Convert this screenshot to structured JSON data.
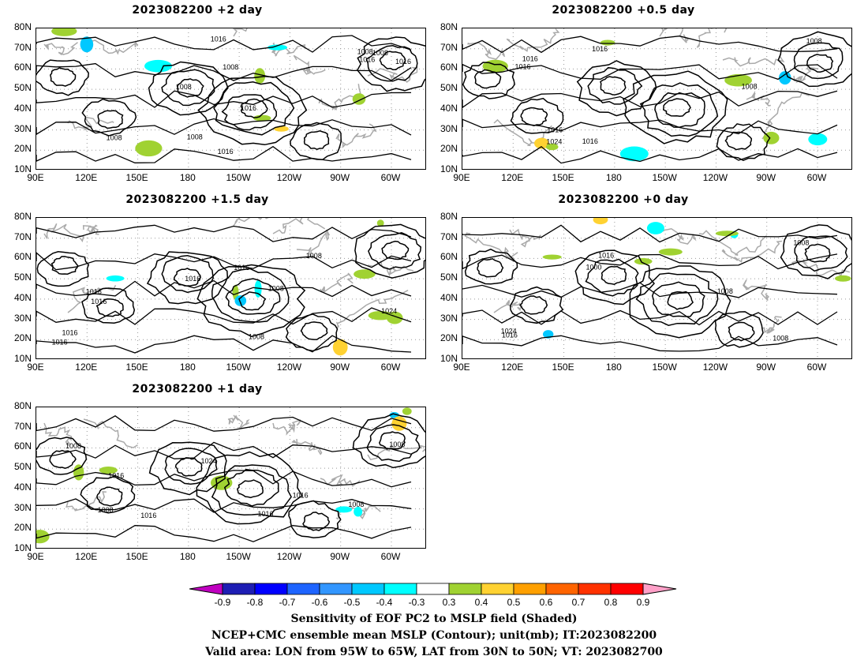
{
  "panels": [
    {
      "id": "p2",
      "title": "2023082200 +2 day",
      "labels": [
        "1016",
        "1016",
        "1008",
        "1008",
        "1016",
        "1016",
        "1008",
        "1016",
        "1008",
        "1008",
        "1008"
      ]
    },
    {
      "id": "p05",
      "title": "2023082200 +0.5 day",
      "labels": [
        "1016",
        "1008",
        "1016",
        "1016",
        "1024",
        "1016",
        "1008",
        "1016"
      ]
    },
    {
      "id": "p15",
      "title": "2023082200 +1.5 day",
      "labels": [
        "1016",
        "1016",
        "1008",
        "1016",
        "1024",
        "1016",
        "1016",
        "1008",
        "1016",
        "1008"
      ]
    },
    {
      "id": "p0",
      "title": "2023082200 +0 day",
      "labels": [
        "1008",
        "1000",
        "1016",
        "1016",
        "1008",
        "1008",
        "1024"
      ]
    },
    {
      "id": "p1",
      "title": "2023082200 +1 day",
      "labels": [
        "1016",
        "1016",
        "1008",
        "1008",
        "1024",
        "1016",
        "1008",
        "1016",
        "1008"
      ]
    }
  ],
  "lat_labels": [
    "80N",
    "70N",
    "60N",
    "50N",
    "40N",
    "30N",
    "20N",
    "10N"
  ],
  "lon_labels": [
    "90E",
    "120E",
    "150E",
    "180",
    "150W",
    "120W",
    "90W",
    "60W"
  ],
  "colorbar": {
    "ticks": [
      "-0.9",
      "-0.8",
      "-0.7",
      "-0.6",
      "-0.5",
      "-0.4",
      "-0.3",
      "0.3",
      "0.4",
      "0.5",
      "0.6",
      "0.7",
      "0.8",
      "0.9"
    ],
    "colors": [
      "#c000c0",
      "#1e1eb4",
      "#0000ff",
      "#1e64ff",
      "#3296ff",
      "#00c8ff",
      "#00ffff",
      "#ffffff",
      "#a0d232",
      "#ffd232",
      "#ffa000",
      "#ff6400",
      "#ff3200",
      "#ff0000",
      "#ffa0c8"
    ]
  },
  "caption": {
    "line1": "Sensitivity of EOF PC2 to MSLP field (Shaded)",
    "line2": "NCEP+CMC ensemble mean MSLP (Contour); unit(mb); IT:2023082200",
    "line3": "Valid area: LON from 95W to 65W, LAT from 30N to 50N; VT: 2023082700"
  }
}
